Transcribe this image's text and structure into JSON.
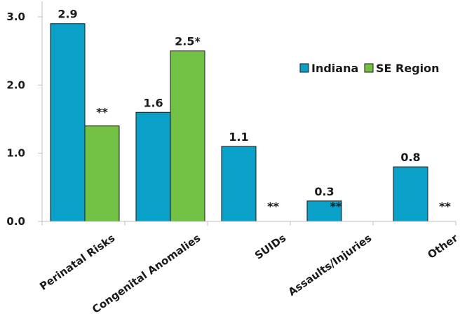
{
  "chart_data": {
    "type": "bar",
    "categories": [
      "Perinatal Risks",
      "Congenital Anomalies",
      "SUIDs",
      "Assaults/Injuries",
      "Other"
    ],
    "series": [
      {
        "name": "Indiana",
        "color": "#0aa0c8",
        "values": [
          2.9,
          1.6,
          1.1,
          0.3,
          0.8
        ],
        "labels": [
          "2.9",
          "1.6",
          "1.1",
          "0.3",
          "0.8"
        ]
      },
      {
        "name": "SE Region",
        "color": "#72c144",
        "values": [
          1.4,
          2.5,
          null,
          null,
          null
        ],
        "labels": [
          "**",
          "2.5*",
          "**",
          "**",
          "**"
        ]
      }
    ],
    "ylim": [
      0,
      3.0
    ],
    "yticks": [
      "0.0",
      "1.0",
      "2.0",
      "3.0"
    ],
    "legend_position": "right",
    "grid": false
  }
}
